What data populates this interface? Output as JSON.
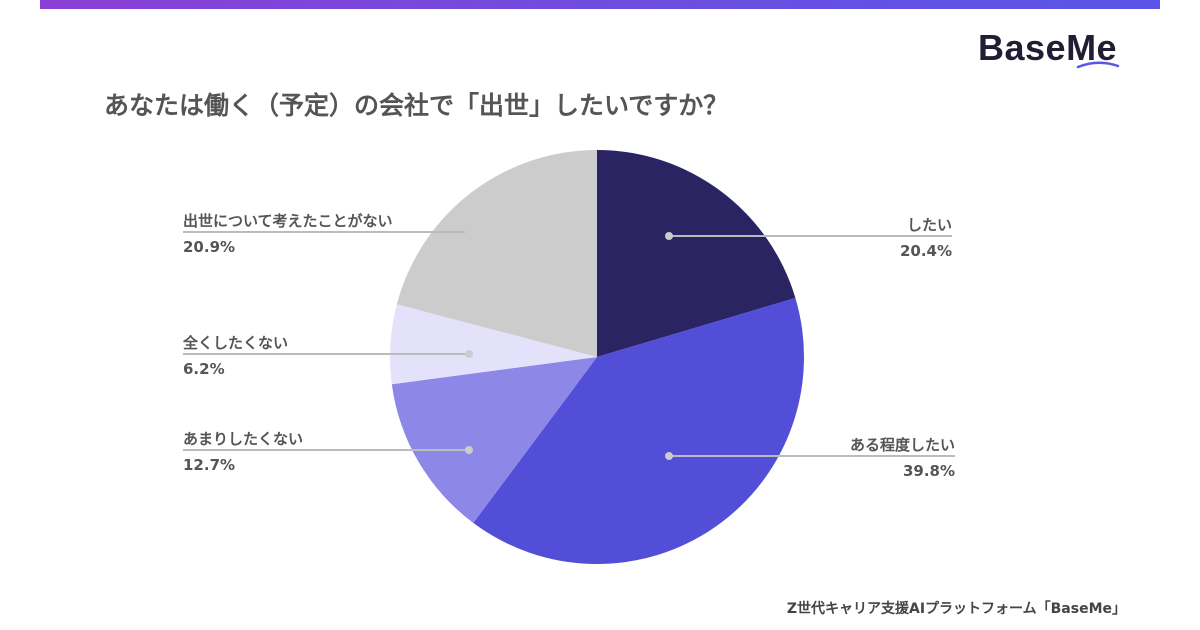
{
  "brand": {
    "logo_text": "BaseMe"
  },
  "title": "あなたは働く（予定）の会社で「出世」したいですか？",
  "footer": "Z世代キャリア支援AIプラットフォーム「BaseMe」",
  "colors": {
    "topbar_start": "#8b3fd6",
    "topbar_end": "#5a55e6",
    "leader_line": "#bbbbbb"
  },
  "chart_data": {
    "type": "pie",
    "title": "あなたは働く（予定）の会社で「出世」したいですか？",
    "start_angle": "12 o'clock",
    "direction": "clockwise",
    "slices": [
      {
        "label": "したい",
        "value": 20.4,
        "value_text": "20.4%",
        "color": "#2a2463"
      },
      {
        "label": "ある程度したい",
        "value": 39.8,
        "value_text": "39.8%",
        "color": "#534ed8"
      },
      {
        "label": "あまりしたくない",
        "value": 12.7,
        "value_text": "12.7%",
        "color": "#8d88e7"
      },
      {
        "label": "全くしたくない",
        "value": 6.2,
        "value_text": "6.2%",
        "color": "#e4e2fa"
      },
      {
        "label": "出世について考えたことがない",
        "value": 20.9,
        "value_text": "20.9%",
        "color": "#cccccc"
      }
    ]
  }
}
